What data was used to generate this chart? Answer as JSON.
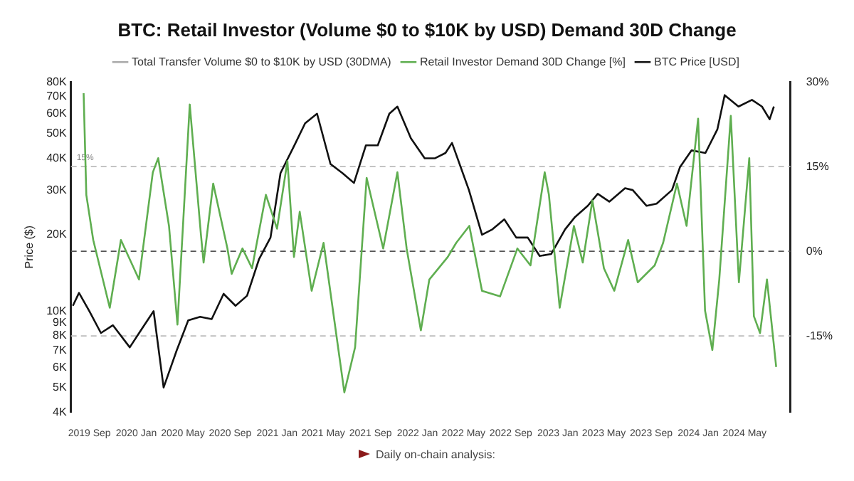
{
  "chart_data": {
    "type": "line",
    "title": "BTC: Retail Investor (Volume $0 to $10K by USD) Demand 30D Change",
    "ylabel": "Price ($)",
    "annotations": [
      "Daily on-chain analysis:"
    ],
    "legend": "top",
    "marker": "none",
    "line_style": "solid",
    "xlim": [
      "2019-07-15",
      "2024-08-28"
    ],
    "xticks": [
      {
        "value": "2019-09",
        "label": "2019 Sep"
      },
      {
        "value": "2020-01",
        "label": "2020 Jan"
      },
      {
        "value": "2020-05",
        "label": "2020 May"
      },
      {
        "value": "2020-09",
        "label": "2020 Sep"
      },
      {
        "value": "2021-01",
        "label": "2021 Jan"
      },
      {
        "value": "2021-05",
        "label": "2021 May"
      },
      {
        "value": "2021-09",
        "label": "2021 Sep"
      },
      {
        "value": "2022-01",
        "label": "2022 Jan"
      },
      {
        "value": "2022-05",
        "label": "2022 May"
      },
      {
        "value": "2022-09",
        "label": "2022 Sep"
      },
      {
        "value": "2023-01",
        "label": "2023 Jan"
      },
      {
        "value": "2023-05",
        "label": "2023 May"
      },
      {
        "value": "2023-09",
        "label": "2023 Sep"
      },
      {
        "value": "2024-01",
        "label": "2024 Jan"
      },
      {
        "value": "2024-05",
        "label": "2024 May"
      }
    ],
    "log": "y",
    "ylim": [
      4000,
      80000
    ],
    "yticks": [
      {
        "value": 4000,
        "label": "4K"
      },
      {
        "value": 5000,
        "label": "5K"
      },
      {
        "value": 6000,
        "label": "6K"
      },
      {
        "value": 7000,
        "label": "7K"
      },
      {
        "value": 8000,
        "label": "8K"
      },
      {
        "value": 9000,
        "label": "9K"
      },
      {
        "value": 10000,
        "label": "10K"
      },
      {
        "value": 20000,
        "label": "20K"
      },
      {
        "value": 30000,
        "label": "30K"
      },
      {
        "value": 40000,
        "label": "40K"
      },
      {
        "value": 50000,
        "label": "50K"
      },
      {
        "value": 60000,
        "label": "60K"
      },
      {
        "value": 70000,
        "label": "70K"
      },
      {
        "value": 80000,
        "label": "80K"
      }
    ],
    "y2lim": [
      -28.5,
      30
    ],
    "y2ticks": [
      {
        "value": 30,
        "label": "30%"
      },
      {
        "value": 15,
        "label": "15%"
      },
      {
        "value": 0,
        "label": "0%"
      },
      {
        "value": -15,
        "label": "-15%"
      }
    ],
    "ref_lines": [
      {
        "axis": "y2",
        "value": 15,
        "label": "15%",
        "color": "#bbbbbb",
        "line_style": "dashed"
      },
      {
        "axis": "y2",
        "value": 0,
        "label": null,
        "color": "#555555",
        "line_style": "dashed"
      },
      {
        "axis": "y2",
        "value": -15,
        "label": null,
        "color": "#bbbbbb",
        "line_style": "dashed"
      }
    ],
    "series": [
      {
        "name": "Total Transfer Volume $0 to $10K by USD (30DMA)",
        "color": "#aaaaaa"
      },
      {
        "name": "Retail Investor Demand 30D Change [%]",
        "color": "#5fae50",
        "axis": "y2",
        "x": [
          "2019-08-17",
          "2019-08-24",
          "2019-09-11",
          "2019-10-24",
          "2019-11-22",
          "2020-01-08",
          "2020-02-13",
          "2020-02-27",
          "2020-03-26",
          "2020-04-17",
          "2020-05-19",
          "2020-06-17",
          "2020-06-24",
          "2020-07-19",
          "2020-08-25",
          "2020-09-05",
          "2020-10-03",
          "2020-10-28",
          "2020-12-03",
          "2021-01-01",
          "2021-01-28",
          "2021-02-14",
          "2021-03-01",
          "2021-04-01",
          "2021-05-02",
          "2021-06-25",
          "2021-07-23",
          "2021-08-22",
          "2021-10-04",
          "2021-11-10",
          "2021-12-04",
          "2022-01-10",
          "2022-02-01",
          "2022-03-21",
          "2022-04-12",
          "2022-05-16",
          "2022-06-18",
          "2022-08-04",
          "2022-09-18",
          "2022-10-22",
          "2022-11-28",
          "2022-12-09",
          "2023-01-06",
          "2023-02-12",
          "2023-03-07",
          "2023-04-01",
          "2023-05-01",
          "2023-05-28",
          "2023-07-03",
          "2023-07-28",
          "2023-09-10",
          "2023-10-02",
          "2023-11-07",
          "2023-12-02",
          "2024-01-01",
          "2024-01-19",
          "2024-02-07",
          "2024-02-25",
          "2024-03-26",
          "2024-04-16",
          "2024-05-13",
          "2024-05-25",
          "2024-06-10",
          "2024-06-28",
          "2024-07-22"
        ],
        "values": [
          28,
          10,
          2,
          -10,
          2,
          -5,
          14,
          16.5,
          4.5,
          -13,
          26,
          3,
          -2,
          12,
          0.5,
          -4,
          0.5,
          -3,
          10,
          4,
          16,
          -1,
          7,
          -7,
          1.5,
          -25,
          -17,
          13,
          0.5,
          14,
          0.5,
          -14,
          -5,
          -1,
          1.5,
          4.5,
          -7,
          -8,
          0.5,
          -2.5,
          14,
          10,
          -10,
          4.5,
          -2,
          9,
          -3,
          -7,
          2,
          -5.5,
          -2.5,
          1.5,
          12,
          4.5,
          23.5,
          -10.5,
          -17.5,
          -5,
          24,
          -5.5,
          16.5,
          -11.5,
          -14.5,
          -5,
          -20.5
        ]
      },
      {
        "name": "BTC Price [USD]",
        "color": "#111111",
        "x": [
          "2019-07-20",
          "2019-08-05",
          "2019-09-01",
          "2019-10-01",
          "2019-11-01",
          "2019-12-15",
          "2020-01-15",
          "2020-02-15",
          "2020-03-12",
          "2020-04-15",
          "2020-05-15",
          "2020-06-15",
          "2020-07-15",
          "2020-08-15",
          "2020-09-15",
          "2020-10-15",
          "2020-11-15",
          "2020-12-15",
          "2021-01-10",
          "2021-02-15",
          "2021-03-15",
          "2021-04-15",
          "2021-05-20",
          "2021-06-20",
          "2021-07-20",
          "2021-08-20",
          "2021-09-20",
          "2021-10-20",
          "2021-11-10",
          "2021-12-15",
          "2022-01-20",
          "2022-02-15",
          "2022-03-15",
          "2022-04-01",
          "2022-05-15",
          "2022-06-18",
          "2022-07-15",
          "2022-08-15",
          "2022-09-15",
          "2022-10-15",
          "2022-11-15",
          "2022-12-15",
          "2023-01-20",
          "2023-02-15",
          "2023-03-20",
          "2023-04-15",
          "2023-05-15",
          "2023-06-25",
          "2023-07-15",
          "2023-08-20",
          "2023-09-15",
          "2023-10-25",
          "2023-11-15",
          "2023-12-15",
          "2024-01-20",
          "2024-02-20",
          "2024-03-10",
          "2024-04-15",
          "2024-05-20",
          "2024-06-15",
          "2024-07-05",
          "2024-07-16"
        ],
        "values": [
          10500,
          11800,
          10000,
          8200,
          8800,
          7200,
          8500,
          10000,
          5000,
          7000,
          9200,
          9500,
          9300,
          11700,
          10500,
          11500,
          16000,
          19500,
          35000,
          45000,
          55000,
          60000,
          38000,
          35000,
          32000,
          45000,
          45000,
          60000,
          64000,
          48000,
          40000,
          40000,
          42000,
          46000,
          30000,
          20000,
          21000,
          23000,
          19500,
          19500,
          16500,
          16800,
          21000,
          23500,
          26000,
          29000,
          27000,
          30500,
          30000,
          26000,
          26500,
          30000,
          37000,
          43000,
          42000,
          52000,
          71000,
          64000,
          68000,
          64000,
          57000,
          64000
        ]
      }
    ]
  }
}
